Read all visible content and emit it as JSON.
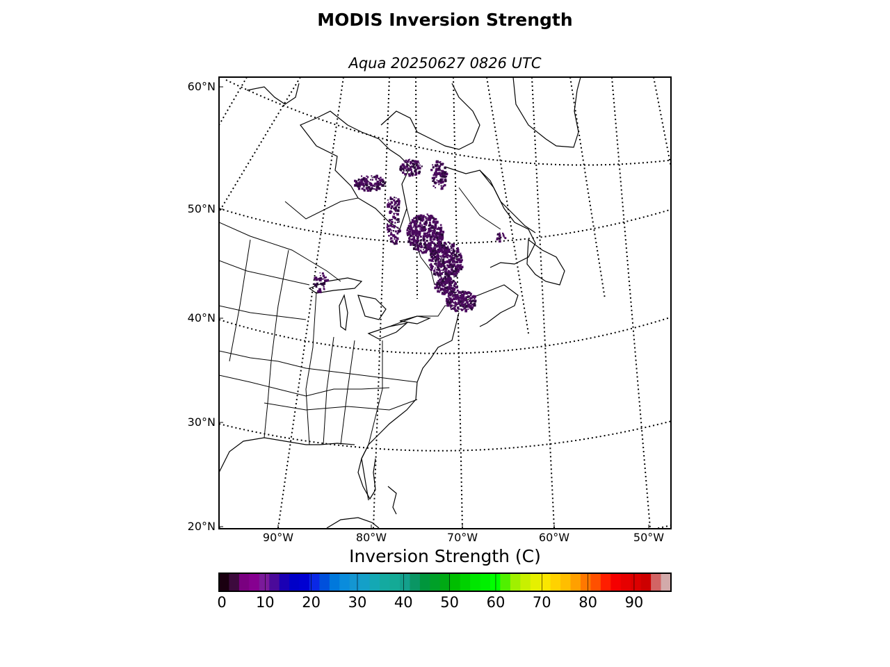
{
  "title": "MODIS Inversion Strength",
  "subtitle": "Aqua 20250627 0826 UTC",
  "map": {
    "projection": "lambert-conformal",
    "lat_labels": [
      "60°N",
      "50°N",
      "40°N",
      "30°N",
      "20°N"
    ],
    "lon_labels": [
      "90°W",
      "80°W",
      "70°W",
      "60°W",
      "50°W"
    ],
    "graticule_style": "dotted",
    "data_color": "#4b0a5e",
    "data_region": "Quebec / Labrador / Gulf of St. Lawrence"
  },
  "colorbar": {
    "title": "Inversion Strength (C)",
    "min": 0,
    "max": 98,
    "ticks": [
      "0",
      "10",
      "20",
      "30",
      "40",
      "50",
      "60",
      "70",
      "80",
      "90"
    ],
    "tick_values": [
      0,
      10,
      20,
      30,
      40,
      50,
      60,
      70,
      80,
      90
    ],
    "colors": [
      "#1a0010",
      "#3d0a3d",
      "#7a0080",
      "#860090",
      "#7a1a9a",
      "#4b0a9a",
      "#1a00b4",
      "#0000c8",
      "#0000d2",
      "#0a28e6",
      "#0050dc",
      "#0078dc",
      "#0a8cdc",
      "#1496d2",
      "#14a0c8",
      "#14a8b4",
      "#14aaa0",
      "#14aa96",
      "#14a08c",
      "#0a9664",
      "#00963c",
      "#00a028",
      "#00aa14",
      "#00be00",
      "#00d200",
      "#00e600",
      "#00f000",
      "#00ff00",
      "#50f000",
      "#a0f000",
      "#c8f000",
      "#e6f000",
      "#fae600",
      "#ffd200",
      "#ffbe00",
      "#ffa000",
      "#ff7800",
      "#ff5000",
      "#ff1e00",
      "#f50000",
      "#e60000",
      "#dc0000",
      "#cd0000",
      "#d26464",
      "#d2aaaa"
    ]
  }
}
